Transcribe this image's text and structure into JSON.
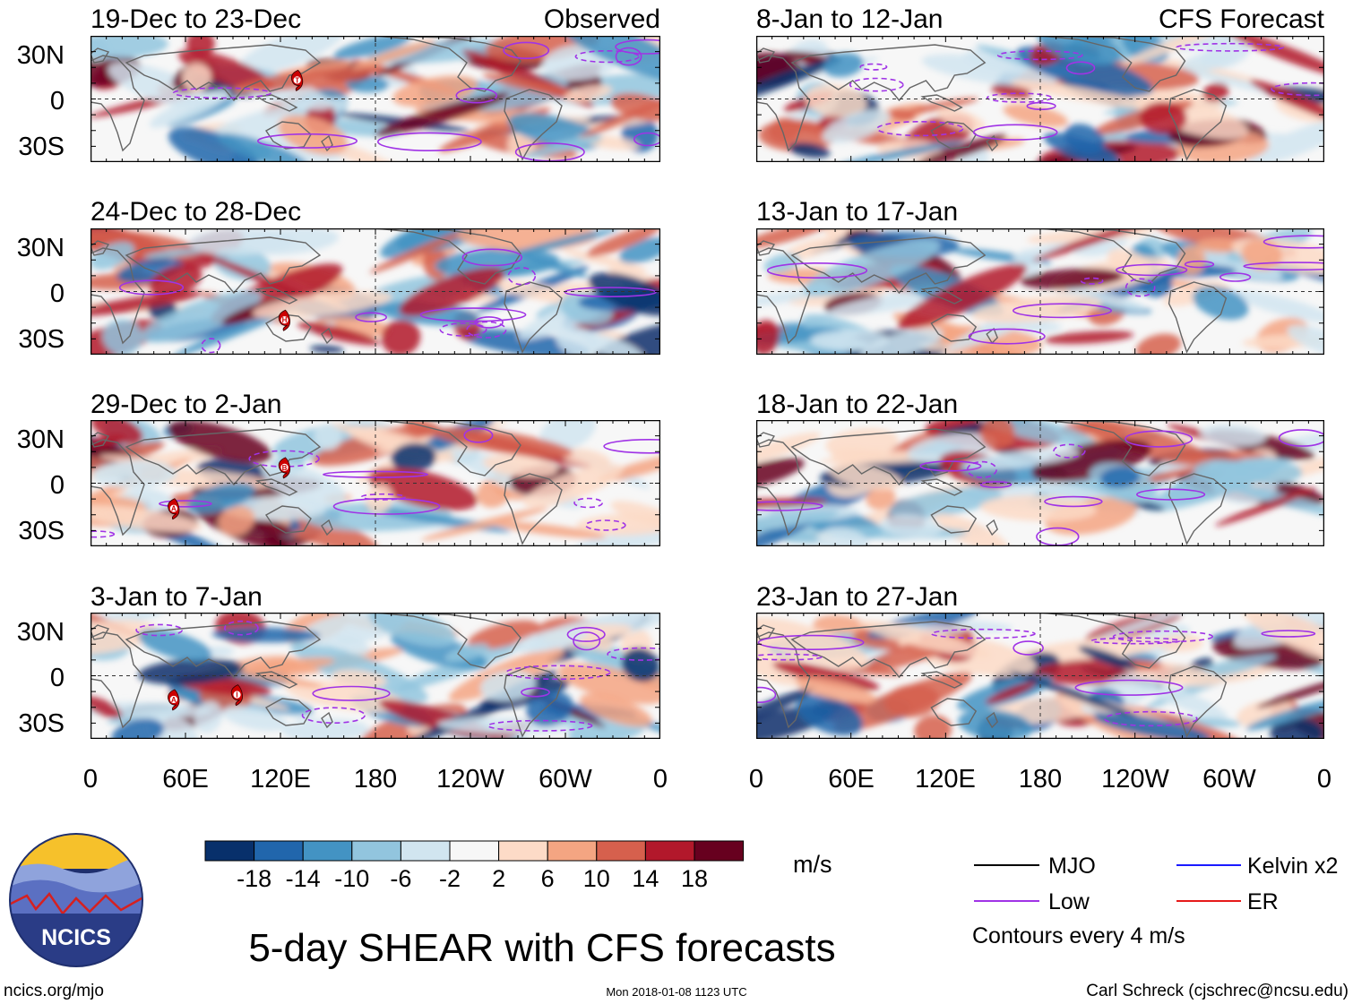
{
  "figure": {
    "title": "5-day SHEAR with CFS forecasts",
    "website": "ncics.org/mjo",
    "timestamp": "Mon 2018-01-08 1123 UTC",
    "author": "Carl Schreck (cjschrec@ncsu.edu)",
    "logo_text": "NCICS",
    "units": "m/s",
    "contour_note": "Contours every 4 m/s"
  },
  "columns": [
    {
      "label": "Observed",
      "panels": [
        {
          "period": "19-Dec to 23-Dec"
        },
        {
          "period": "24-Dec to 28-Dec"
        },
        {
          "period": "29-Dec to 2-Jan"
        },
        {
          "period": "3-Jan to 7-Jan"
        }
      ]
    },
    {
      "label": "CFS Forecast",
      "panels": [
        {
          "period": "8-Jan to 12-Jan"
        },
        {
          "period": "13-Jan to 17-Jan"
        },
        {
          "period": "18-Jan to 22-Jan"
        },
        {
          "period": "23-Jan to 27-Jan"
        }
      ]
    }
  ],
  "axes": {
    "lat_labels": [
      "30N",
      "0",
      "30S"
    ],
    "lon_labels": [
      "0",
      "60E",
      "120E",
      "180",
      "120W",
      "60W",
      "0"
    ]
  },
  "colorbar": {
    "colors": [
      "#08306b",
      "#2166ac",
      "#4393c3",
      "#92c5de",
      "#d1e5f0",
      "#f7f7f7",
      "#fddbc7",
      "#f4a582",
      "#d6604d",
      "#b2182b",
      "#67001f"
    ],
    "tick_labels": [
      "-18",
      "-14",
      "-10",
      "-6",
      "-2",
      "2",
      "6",
      "10",
      "14",
      "18"
    ]
  },
  "legend": [
    {
      "label": "MJO",
      "color": "#000000"
    },
    {
      "label": "Kelvin x2",
      "color": "#1a1aff"
    },
    {
      "label": "Low",
      "color": "#a033e6"
    },
    {
      "label": "ER",
      "color": "#e61a1a"
    }
  ],
  "storm_markers": [
    {
      "panel": "obs-0",
      "letter": "T",
      "lon": 130,
      "lat": 12
    },
    {
      "panel": "obs-1",
      "letter": "H",
      "lon": 122,
      "lat": -18
    },
    {
      "panel": "obs-2",
      "letter": "B",
      "lon": 122,
      "lat": 10
    },
    {
      "panel": "obs-2",
      "letter": "A",
      "lon": 52,
      "lat": -16
    },
    {
      "panel": "obs-3",
      "letter": "A",
      "lon": 52,
      "lat": -15
    },
    {
      "panel": "obs-3",
      "letter": "I",
      "lon": 92,
      "lat": -12
    }
  ],
  "chart_data": {
    "type": "heatmap",
    "variable": "5-day SHEAR",
    "units": "m/s",
    "lon_range": [
      0,
      360
    ],
    "lat_range": [
      -40,
      40
    ],
    "contour_interval": 4,
    "levels": [
      -18,
      -14,
      -10,
      -6,
      -2,
      2,
      6,
      10,
      14,
      18
    ]
  }
}
